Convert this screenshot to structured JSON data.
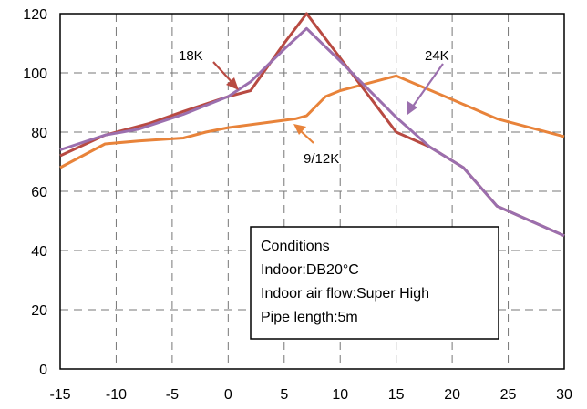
{
  "chart_data": {
    "type": "line",
    "xlim": [
      -15,
      30
    ],
    "ylim": [
      0,
      120
    ],
    "xticks": [
      -15,
      -10,
      -5,
      0,
      5,
      10,
      15,
      20,
      25,
      30
    ],
    "yticks": [
      0,
      20,
      40,
      60,
      80,
      100,
      120
    ],
    "grid": true,
    "series": [
      {
        "name": "9/12K",
        "color": "#e8833a",
        "points": [
          [
            -15,
            68
          ],
          [
            -11,
            76
          ],
          [
            -8,
            77
          ],
          [
            -4,
            78
          ],
          [
            -2,
            80
          ],
          [
            0,
            81.5
          ],
          [
            6,
            84.5
          ],
          [
            7,
            85.5
          ],
          [
            8.7,
            92
          ],
          [
            10,
            94
          ],
          [
            15,
            99
          ],
          [
            20,
            91
          ],
          [
            24,
            84.5
          ],
          [
            30,
            78.5
          ]
        ]
      },
      {
        "name": "18K",
        "color": "#b84a42",
        "points": [
          [
            -15,
            72
          ],
          [
            -11,
            79
          ],
          [
            -7,
            83
          ],
          [
            -4,
            87
          ],
          [
            0,
            92
          ],
          [
            2,
            94
          ],
          [
            5,
            110
          ],
          [
            7,
            120
          ],
          [
            15,
            80
          ],
          [
            18,
            75
          ],
          [
            21,
            68
          ],
          [
            24,
            55
          ],
          [
            30,
            45
          ]
        ]
      },
      {
        "name": "24K",
        "color": "#9b6fae",
        "points": [
          [
            -15,
            74
          ],
          [
            -11,
            79
          ],
          [
            -8,
            81
          ],
          [
            -4,
            86
          ],
          [
            0,
            92
          ],
          [
            2,
            97
          ],
          [
            5,
            108
          ],
          [
            7,
            115
          ],
          [
            10,
            104
          ],
          [
            15,
            85
          ],
          [
            18,
            75
          ],
          [
            21,
            68
          ],
          [
            24,
            55
          ],
          [
            30,
            45
          ]
        ]
      }
    ],
    "annotations": {
      "label_18k": "18K",
      "label_24k": "24K",
      "label_912k": "9/12K"
    },
    "legend_box": {
      "lines": [
        "Conditions",
        "Indoor:DB20°C",
        "Indoor air flow:Super High",
        "Pipe length:5m"
      ]
    }
  }
}
